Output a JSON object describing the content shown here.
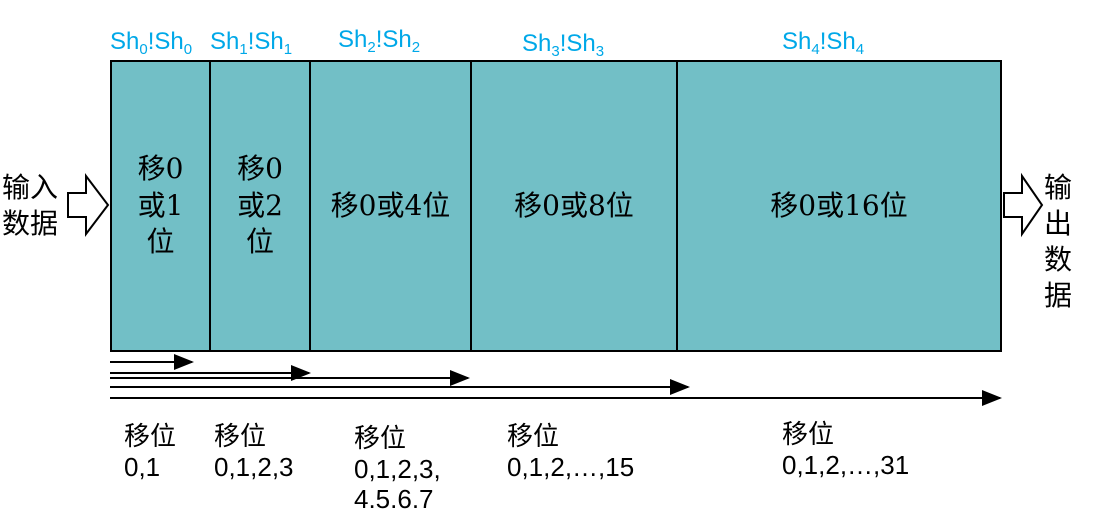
{
  "controls": [
    {
      "html": "Sh<sub>0</sub>!Sh<sub>0</sub>"
    },
    {
      "html": "Sh<sub>1</sub>!Sh<sub>1</sub>"
    },
    {
      "html": "Sh<sub>2</sub>!Sh<sub>2</sub>"
    },
    {
      "html": "Sh<sub>3</sub>!Sh<sub>3</sub>"
    },
    {
      "html": "Sh<sub>4</sub>!Sh<sub>4</sub>"
    }
  ],
  "stages": [
    {
      "line1": "移0",
      "line2": "或1",
      "line3": "位"
    },
    {
      "line1": "移0",
      "line2": "或2",
      "line3": "位"
    },
    {
      "label": "移0或4位"
    },
    {
      "label": "移0或8位"
    },
    {
      "label": "移0或16位"
    }
  ],
  "input": {
    "line1": "输入",
    "line2": "数据"
  },
  "output": {
    "line1": "输出",
    "line2": "数据"
  },
  "ranges": [
    {
      "title": "移位",
      "line1": "0,1",
      "line2": ""
    },
    {
      "title": "移位",
      "line1": "0,1,2,3",
      "line2": ""
    },
    {
      "title": "移位",
      "line1": "0,1,2,3,",
      "line2": "4.5.6.7"
    },
    {
      "title": "移位",
      "line1": "0,1,2,…,15",
      "line2": ""
    },
    {
      "title": "移位",
      "line1": "0,1,2,…,31",
      "line2": ""
    }
  ],
  "colors": {
    "stage_fill": "#72bfc6",
    "control_text": "#00a8e8",
    "border": "#000000"
  }
}
